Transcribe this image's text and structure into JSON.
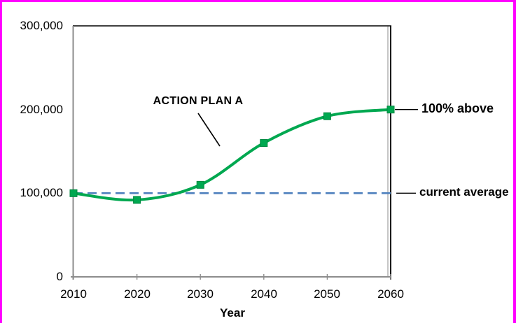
{
  "frame": {
    "border_color": "#FF00FF",
    "background": "#FFFFFF"
  },
  "chart_data": {
    "type": "line",
    "x": [
      2010,
      2020,
      2030,
      2040,
      2050,
      2060
    ],
    "series": [
      {
        "name": "ACTION PLAN A",
        "values": [
          100000,
          92000,
          110000,
          160000,
          192000,
          200000
        ],
        "color": "#00A850",
        "marker": "square",
        "marker_color": "#00A850",
        "smooth": true
      }
    ],
    "reference_line": {
      "value": 100000,
      "label": "current average",
      "color": "#4F81BD",
      "style": "dashed"
    },
    "title": "",
    "xlabel": "Year",
    "ylabel": "",
    "ylim": [
      0,
      300000
    ],
    "ytick_labels": [
      "300,000",
      "200,000",
      "100,000",
      "0"
    ],
    "ytick_values": [
      300000,
      200000,
      100000,
      0
    ],
    "xtick_labels": [
      "2010",
      "2020",
      "2030",
      "2040",
      "2050",
      "2060"
    ],
    "grid": false,
    "legend_position": "none"
  },
  "annotations": {
    "series_callout": "ACTION PLAN A",
    "top_right_label": "100% above",
    "bottom_right_label": "current average"
  },
  "colors": {
    "series_green": "#00A850",
    "series_green_edge": "#00873F",
    "reference_blue": "#4F81BD",
    "axis_gray": "#8C8C8C",
    "plot_border_black": "#000000"
  }
}
